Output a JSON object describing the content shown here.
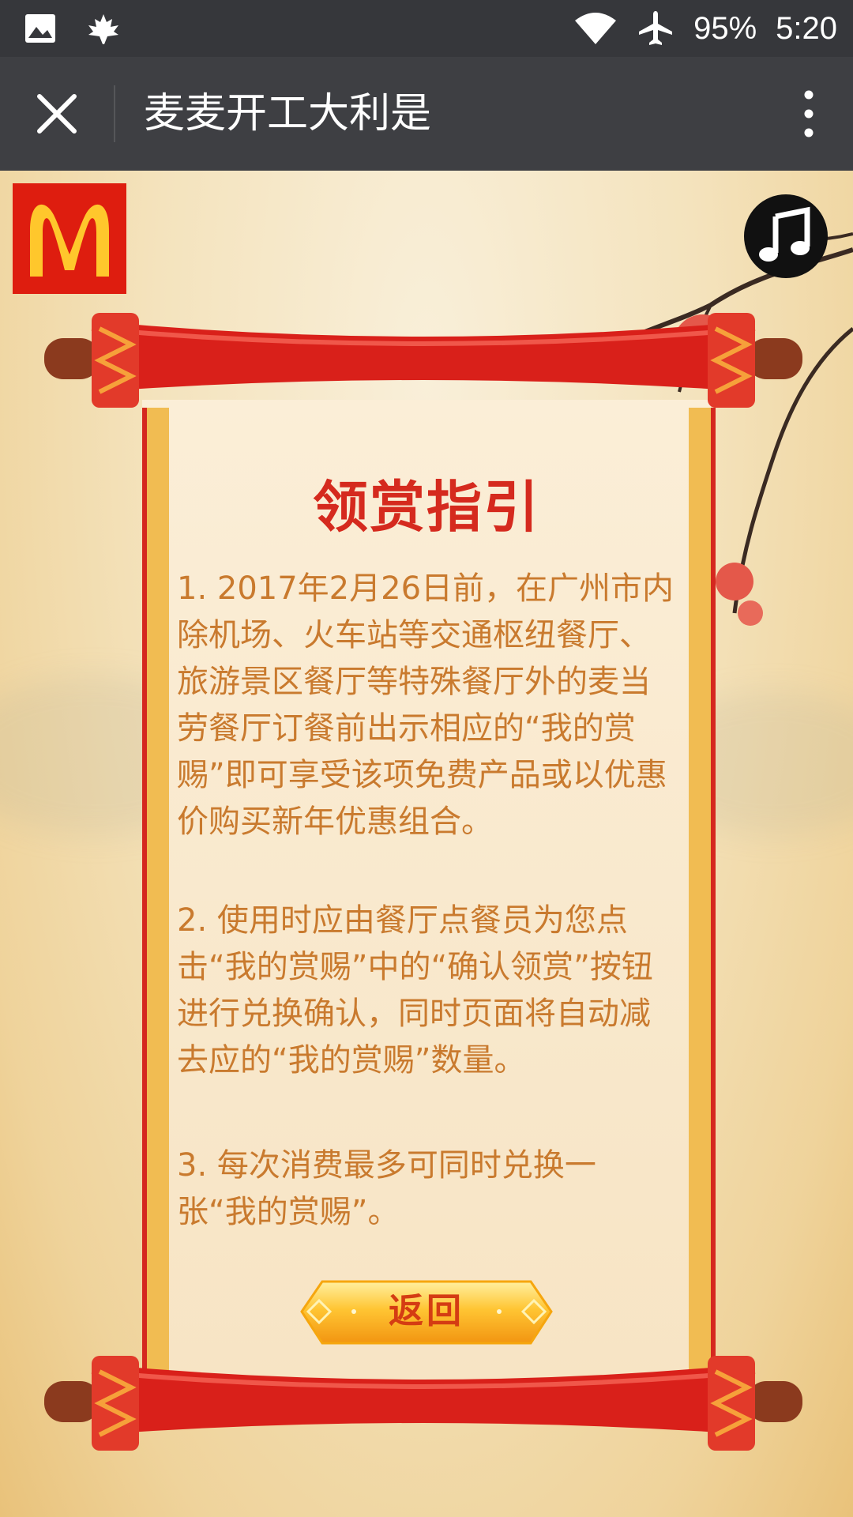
{
  "status_bar": {
    "battery": "95%",
    "time": "5:20",
    "icons": [
      "image-icon",
      "maple-leaf-icon",
      "wifi-icon",
      "airplane-mode-icon"
    ]
  },
  "title_bar": {
    "title": "麦麦开工大利是"
  },
  "guide": {
    "title": "领赏指引",
    "items": [
      "1. 2017年2月26日前，在广州市内除机场、火车站等交通枢纽餐厅、旅游景区餐厅等特殊餐厅外的麦当劳餐厅订餐前出示相应的“我的赏赐”即可享受该项免费产品或以优惠价购买新年优惠组合。",
      "2. 使用时应由餐厅点餐员为您点击“我的赏赐”中的“确认领赏”按钮进行兑换确认，同时页面将自动减去应的“我的赏赐”数量。",
      "3. 每次消费最多可同时兑换一张“我的赏赐”。"
    ],
    "back_label": "返回"
  },
  "colors": {
    "mcd_red": "#de1d0f",
    "mcd_yellow": "#ffc72c",
    "title_red": "#d52a1e",
    "text_orange": "#c97a2e",
    "status_bar": "#36373b",
    "title_bar": "#3e3f43"
  }
}
